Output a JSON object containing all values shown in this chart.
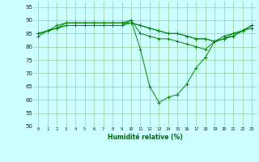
{
  "x": [
    0,
    1,
    2,
    3,
    4,
    5,
    6,
    7,
    8,
    9,
    10,
    11,
    12,
    13,
    14,
    15,
    16,
    17,
    18,
    19,
    20,
    21,
    22,
    23
  ],
  "series": [
    [
      85,
      86,
      87,
      88,
      88,
      88,
      88,
      88,
      88,
      88,
      90,
      79,
      65,
      59,
      61,
      62,
      66,
      72,
      76,
      82,
      84,
      85,
      86,
      88
    ],
    [
      84,
      86,
      87,
      89,
      89,
      89,
      89,
      89,
      89,
      89,
      90,
      85,
      84,
      83,
      83,
      82,
      81,
      80,
      79,
      82,
      83,
      85,
      86,
      88
    ],
    [
      85,
      86,
      88,
      89,
      89,
      89,
      89,
      89,
      89,
      89,
      89,
      88,
      87,
      86,
      85,
      85,
      84,
      83,
      83,
      82,
      83,
      84,
      86,
      88
    ],
    [
      85,
      86,
      87,
      88,
      88,
      88,
      88,
      88,
      88,
      88,
      89,
      88,
      87,
      86,
      85,
      85,
      84,
      83,
      83,
      82,
      83,
      84,
      86,
      87
    ]
  ],
  "line_color": "#008800",
  "bg_color": "#ccffff",
  "grid_color": "#99cc99",
  "xlabel": "Humidité relative (%)",
  "xlabel_color": "#006600",
  "ylim": [
    50,
    97
  ],
  "yticks": [
    50,
    55,
    60,
    65,
    70,
    75,
    80,
    85,
    90,
    95
  ],
  "xtick_labels": [
    "0",
    "1",
    "2",
    "3",
    "4",
    "5",
    "6",
    "7",
    "8",
    "9",
    "10",
    "11",
    "12",
    "13",
    "14",
    "15",
    "16",
    "17",
    "18",
    "19",
    "20",
    "21",
    "22",
    "23"
  ]
}
